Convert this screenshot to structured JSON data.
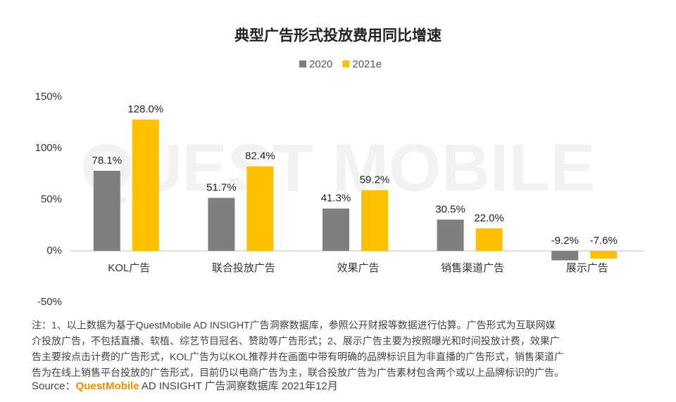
{
  "chart_data": {
    "type": "bar",
    "title": "典型广告形式投放费用同比增速",
    "watermark": "QUEST MOBILE",
    "categories": [
      "KOL广告",
      "联合投放广告",
      "效果广告",
      "销售渠道广告",
      "展示广告"
    ],
    "series": [
      {
        "name": "2020",
        "color": "#7f7f7f",
        "values": [
          78.1,
          51.7,
          41.3,
          30.5,
          -9.2
        ],
        "value_labels": [
          "78.1%",
          "51.7%",
          "41.3%",
          "30.5%",
          "-9.2%"
        ]
      },
      {
        "name": "2021e",
        "color": "#ffc000",
        "values": [
          128.0,
          82.4,
          59.2,
          22.0,
          -7.6
        ],
        "value_labels": [
          "128.0%",
          "82.4%",
          "59.2%",
          "22.0%",
          "-7.6%"
        ]
      }
    ],
    "ylim": [
      -50,
      150
    ],
    "yticks": [
      {
        "value": -50,
        "label": "-50%"
      },
      {
        "value": 0,
        "label": "0%"
      },
      {
        "value": 50,
        "label": "50%"
      },
      {
        "value": 100,
        "label": "100%"
      },
      {
        "value": 150,
        "label": "150%"
      }
    ],
    "legend": "top",
    "notes": [
      "注：1、以上数据为基于QuestMobile AD INSIGHT广告洞察数据库，参照公开财报等数据进行估算。广告形式为互联网媒",
      "介投放广告，不包括直播、软植、综艺节目冠名、赞助等广告形式；2、展示广告主要为按照曝光和时间投放计费，效果广",
      "告主要按点击计费的广告形式，KOL广告为以KOL推荐并在画面中带有明确的品牌标识且为非直播的广告形式，销售渠道广",
      "告为在线上销售平台投放的广告形式，目前仍以电商广告为主，联合投放广告为广告素材包含两个或以上品牌标识的广告。"
    ],
    "source_label": "Source：",
    "source_brand": "QuestMobile",
    "source_text": " AD INSIGHT 广告洞察数据库  2021年12月"
  }
}
